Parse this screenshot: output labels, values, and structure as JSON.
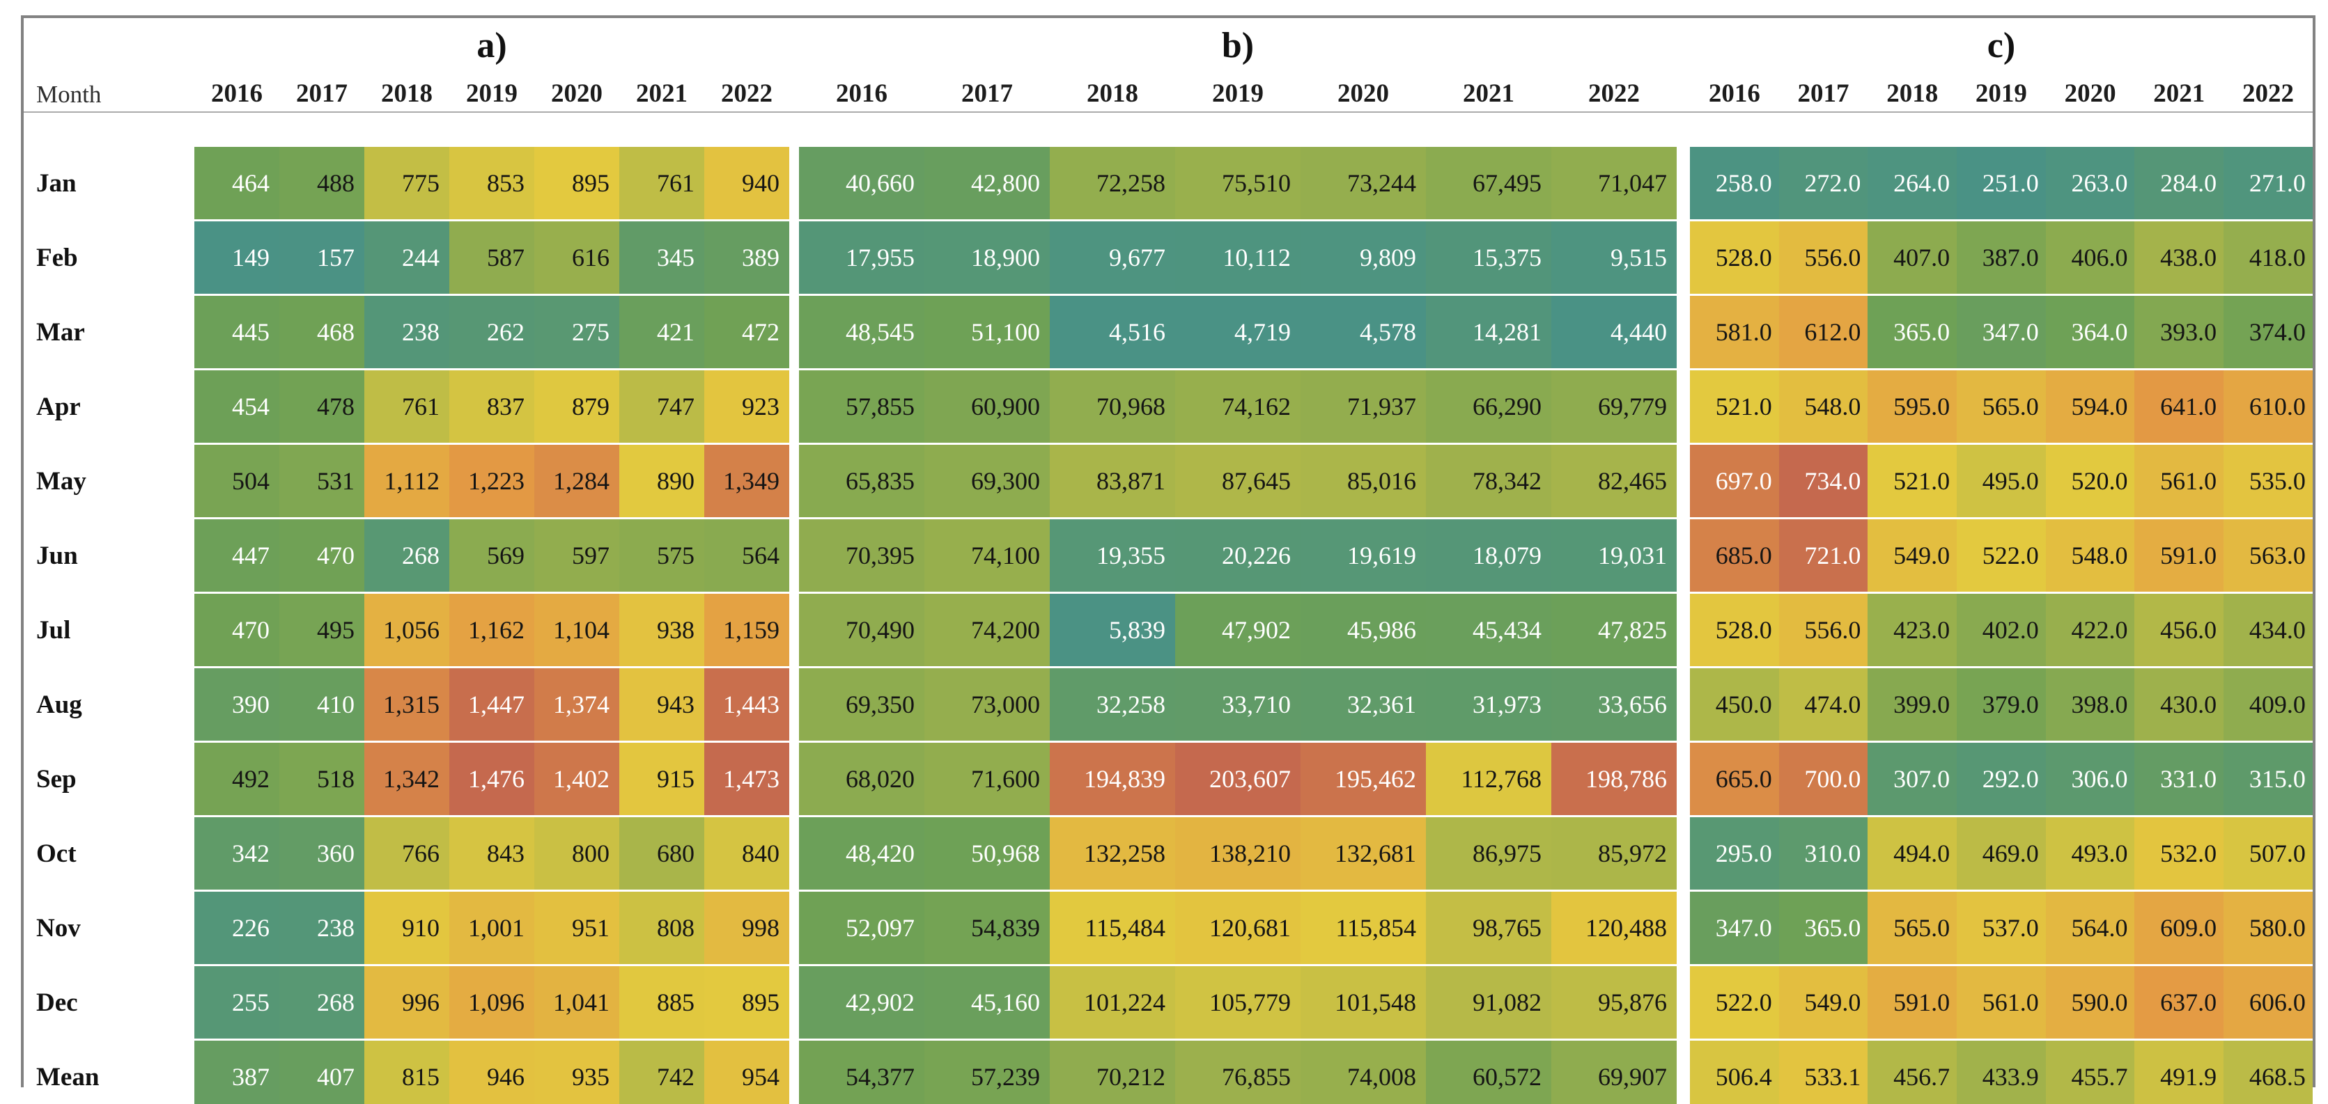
{
  "figure": {
    "description": "Monthly heatmap tables for 2016-2022, three panels a), b), c), rows Jan-Dec plus Mean",
    "month_column_label": "Month"
  },
  "chart_data": [
    {
      "type": "heatmap",
      "title": "a)",
      "x": [
        "2016",
        "2017",
        "2018",
        "2019",
        "2020",
        "2021",
        "2022"
      ],
      "y": [
        "Jan",
        "Feb",
        "Mar",
        "Apr",
        "May",
        "Jun",
        "Jul",
        "Aug",
        "Sep",
        "Oct",
        "Nov",
        "Dec",
        "Mean"
      ],
      "value_format": "thousands",
      "vmin": 149,
      "vmax": 1476,
      "values": [
        [
          464,
          488,
          775,
          853,
          895,
          761,
          940
        ],
        [
          149,
          157,
          244,
          587,
          616,
          345,
          389
        ],
        [
          445,
          468,
          238,
          262,
          275,
          421,
          472
        ],
        [
          454,
          478,
          761,
          837,
          879,
          747,
          923
        ],
        [
          504,
          531,
          1112,
          1223,
          1284,
          890,
          1349
        ],
        [
          447,
          470,
          268,
          569,
          597,
          575,
          564
        ],
        [
          470,
          495,
          1056,
          1162,
          1104,
          938,
          1159
        ],
        [
          390,
          410,
          1315,
          1447,
          1374,
          943,
          1443
        ],
        [
          492,
          518,
          1342,
          1476,
          1402,
          915,
          1473
        ],
        [
          342,
          360,
          766,
          843,
          800,
          680,
          840
        ],
        [
          226,
          238,
          910,
          1001,
          951,
          808,
          998
        ],
        [
          255,
          268,
          996,
          1096,
          1041,
          885,
          895
        ],
        [
          387,
          407,
          815,
          946,
          935,
          742,
          954
        ]
      ]
    },
    {
      "type": "heatmap",
      "title": "b)",
      "x": [
        "2016",
        "2017",
        "2018",
        "2019",
        "2020",
        "2021",
        "2022"
      ],
      "y": [
        "Jan",
        "Feb",
        "Mar",
        "Apr",
        "May",
        "Jun",
        "Jul",
        "Aug",
        "Sep",
        "Oct",
        "Nov",
        "Dec",
        "Mean"
      ],
      "value_format": "thousands",
      "vmin": 4440,
      "vmax": 203607,
      "values": [
        [
          40660,
          42800,
          72258,
          75510,
          73244,
          67495,
          71047
        ],
        [
          17955,
          18900,
          9677,
          10112,
          9809,
          15375,
          9515
        ],
        [
          48545,
          51100,
          4516,
          4719,
          4578,
          14281,
          4440
        ],
        [
          57855,
          60900,
          70968,
          74162,
          71937,
          66290,
          69779
        ],
        [
          65835,
          69300,
          83871,
          87645,
          85016,
          78342,
          82465
        ],
        [
          70395,
          74100,
          19355,
          20226,
          19619,
          18079,
          19031
        ],
        [
          70490,
          74200,
          5839,
          47902,
          45986,
          45434,
          47825
        ],
        [
          69350,
          73000,
          32258,
          33710,
          32361,
          31973,
          33656
        ],
        [
          68020,
          71600,
          194839,
          203607,
          195462,
          112768,
          198786
        ],
        [
          48420,
          50968,
          132258,
          138210,
          132681,
          86975,
          85972
        ],
        [
          52097,
          54839,
          115484,
          120681,
          115854,
          98765,
          120488
        ],
        [
          42902,
          45160,
          101224,
          105779,
          101548,
          91082,
          95876
        ],
        [
          54377,
          57239,
          70212,
          76855,
          74008,
          60572,
          69907
        ]
      ]
    },
    {
      "type": "heatmap",
      "title": "c)",
      "x": [
        "2016",
        "2017",
        "2018",
        "2019",
        "2020",
        "2021",
        "2022"
      ],
      "y": [
        "Jan",
        "Feb",
        "Mar",
        "Apr",
        "May",
        "Jun",
        "Jul",
        "Aug",
        "Sep",
        "Oct",
        "Nov",
        "Dec",
        "Mean"
      ],
      "value_format": "decimal1",
      "vmin": 251,
      "vmax": 734,
      "values": [
        [
          258,
          272,
          264,
          251,
          263,
          284,
          271
        ],
        [
          528,
          556,
          407,
          387,
          406,
          438,
          418
        ],
        [
          581,
          612,
          365,
          347,
          364,
          393,
          374
        ],
        [
          521,
          548,
          595,
          565,
          594,
          641,
          610
        ],
        [
          697,
          734,
          521,
          495,
          520,
          561,
          535
        ],
        [
          685,
          721,
          549,
          522,
          548,
          591,
          563
        ],
        [
          528,
          556,
          423,
          402,
          422,
          456,
          434
        ],
        [
          450,
          474,
          399,
          379,
          398,
          430,
          409
        ],
        [
          665,
          700,
          307,
          292,
          306,
          331,
          315
        ],
        [
          295,
          310,
          494,
          469,
          493,
          532,
          507
        ],
        [
          347,
          365,
          565,
          537,
          564,
          609,
          580
        ],
        [
          522,
          549,
          591,
          561,
          590,
          637,
          606
        ],
        [
          506.4,
          533.1,
          456.7,
          433.9,
          455.7,
          491.9,
          468.5
        ]
      ]
    }
  ],
  "style": {
    "colormap_stops": [
      [
        0.0,
        "#4A9285"
      ],
      [
        0.24,
        "#6FA155"
      ],
      [
        0.56,
        "#E3C93F"
      ],
      [
        0.8,
        "#E49B44"
      ],
      [
        1.0,
        "#C5694E"
      ]
    ],
    "text_dark": "#141414",
    "text_light": "#FFFFFF",
    "luminance_threshold": 0.3,
    "frame_border": "#828282",
    "header_rule": "#ABABAB",
    "bottom_rule": "#CFCFCF",
    "background": "#FFFFFF"
  }
}
